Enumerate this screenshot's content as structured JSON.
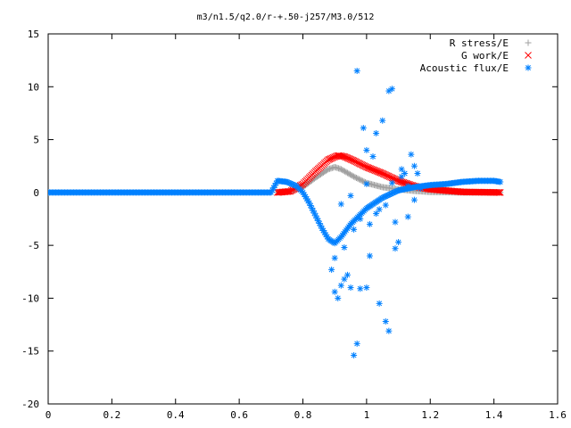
{
  "chart_data": {
    "type": "scatter",
    "title": "m3/n1.5/q2.0/r-+.50-j257/M3.0/512",
    "xlabel": "",
    "ylabel": "",
    "xlim": [
      0,
      1.6
    ],
    "ylim": [
      -20,
      15
    ],
    "x_ticks": [
      "0",
      "0.2",
      "0.4",
      "0.6",
      "0.8",
      "1",
      "1.2",
      "1.4",
      "1.6"
    ],
    "y_ticks": [
      "15",
      "10",
      "5",
      "0",
      "-5",
      "-10",
      "-15",
      "-20"
    ],
    "grid": false,
    "legend_position": "top-right",
    "series": [
      {
        "name": "R stress/E",
        "marker": "plus",
        "color": "#a0a0a0",
        "x": [
          0.72,
          0.76,
          0.8,
          0.84,
          0.88,
          0.9,
          0.92,
          0.96,
          1.0,
          1.05,
          1.1,
          1.15,
          1.2,
          1.3,
          1.42
        ],
        "y": [
          0.0,
          0.1,
          0.5,
          1.4,
          2.2,
          2.4,
          2.2,
          1.5,
          0.9,
          0.5,
          0.3,
          0.15,
          0.05,
          0.0,
          0.0
        ]
      },
      {
        "name": "G work/E",
        "marker": "cross",
        "color": "#ff0000",
        "x": [
          0.72,
          0.76,
          0.8,
          0.84,
          0.88,
          0.91,
          0.93,
          0.96,
          1.0,
          1.05,
          1.1,
          1.15,
          1.2,
          1.3,
          1.42
        ],
        "y": [
          0.0,
          0.1,
          0.8,
          2.0,
          3.1,
          3.5,
          3.4,
          3.0,
          2.4,
          1.8,
          1.1,
          0.6,
          0.3,
          0.05,
          0.0
        ]
      },
      {
        "name": "Acoustic flux/E",
        "marker": "star",
        "color": "#0080ff",
        "x": [
          0.0,
          0.1,
          0.2,
          0.3,
          0.4,
          0.5,
          0.6,
          0.7,
          0.72,
          0.75,
          0.78,
          0.8,
          0.82,
          0.84,
          0.86,
          0.88,
          0.9,
          0.92,
          0.95,
          1.0,
          1.05,
          1.1,
          1.15,
          1.2,
          1.25,
          1.3,
          1.35,
          1.4,
          1.42,
          0.89,
          0.9,
          0.91,
          0.92,
          0.93,
          0.94,
          0.95,
          0.96,
          0.97,
          0.97,
          0.98,
          0.99,
          1.0,
          1.0,
          1.01,
          1.02,
          1.03,
          1.04,
          1.05,
          1.06,
          1.07,
          1.07,
          1.08,
          1.09,
          1.1,
          1.11,
          1.12,
          1.13,
          1.14,
          1.15,
          1.16,
          0.9,
          0.93,
          0.96,
          0.98,
          1.01,
          1.03,
          1.06,
          1.08,
          1.11,
          1.13,
          1.15,
          1.17,
          0.92,
          0.95,
          1.0,
          1.04,
          1.09
        ],
        "y": [
          0.0,
          0.0,
          0.0,
          0.0,
          0.0,
          0.0,
          0.0,
          0.0,
          1.1,
          1.0,
          0.6,
          0.0,
          -1.0,
          -2.2,
          -3.4,
          -4.4,
          -4.8,
          -4.2,
          -3.0,
          -1.5,
          -0.5,
          0.2,
          0.5,
          0.7,
          0.8,
          1.0,
          1.1,
          1.1,
          1.0,
          -7.3,
          -9.4,
          -10.0,
          -8.8,
          -8.2,
          -7.8,
          -9.0,
          -15.4,
          -14.3,
          11.5,
          -9.1,
          6.1,
          -9.0,
          4.0,
          -6.0,
          3.4,
          5.6,
          -10.5,
          6.8,
          -12.2,
          9.6,
          -13.1,
          9.8,
          -5.3,
          -4.7,
          2.2,
          1.8,
          -2.3,
          3.6,
          2.5,
          1.8,
          -6.2,
          -5.2,
          -3.5,
          -2.5,
          -3.0,
          -2.0,
          -1.2,
          0.9,
          1.5,
          0.6,
          -0.7,
          0.4,
          -1.1,
          -0.3,
          0.8,
          -1.6,
          -2.8
        ]
      }
    ]
  }
}
